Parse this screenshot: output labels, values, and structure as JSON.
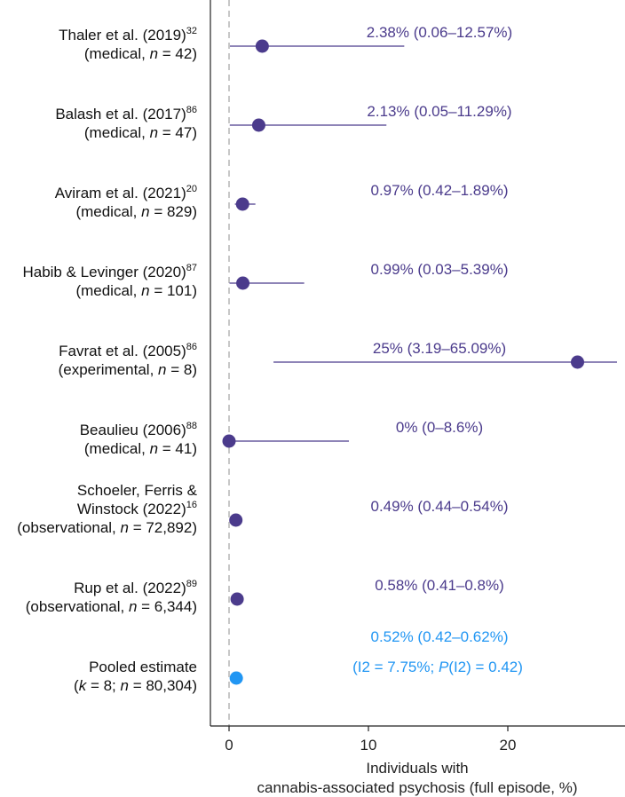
{
  "chart_data": {
    "type": "forest",
    "xlabel_line1": "Individuals with",
    "xlabel_line2": "cannabis-associated psychosis (full episode, %)",
    "xlim": [
      -1.5,
      28
    ],
    "xticks": [
      0,
      10,
      20
    ],
    "reference_line_x": 0,
    "colors": {
      "study": "#4b3b8c",
      "pooled": "#2196f3",
      "axis": "#222222",
      "reference": "#bbbbbb"
    },
    "studies": [
      {
        "name": "Thaler et al. (2019)",
        "ref": "32",
        "detail_pre": "(medical, ",
        "n_label": "n",
        "detail_post": " = 42)",
        "estimate": 2.38,
        "lower": 0.06,
        "upper": 12.57,
        "estimate_label": "2.38% (0.06–12.57%)"
      },
      {
        "name": "Balash et al. (2017)",
        "ref": "86",
        "detail_pre": "(medical, ",
        "n_label": "n",
        "detail_post": " = 47)",
        "estimate": 2.13,
        "lower": 0.05,
        "upper": 11.29,
        "estimate_label": "2.13% (0.05–11.29%)"
      },
      {
        "name": "Aviram et al. (2021)",
        "ref": "20",
        "detail_pre": "(medical, ",
        "n_label": "n",
        "detail_post": " = 829)",
        "estimate": 0.97,
        "lower": 0.42,
        "upper": 1.89,
        "estimate_label": "0.97% (0.42–1.89%)"
      },
      {
        "name": "Habib & Levinger (2020)",
        "ref": "87",
        "detail_pre": "(medical, ",
        "n_label": "n",
        "detail_post": " = 101)",
        "estimate": 0.99,
        "lower": 0.03,
        "upper": 5.39,
        "estimate_label": "0.99% (0.03–5.39%)"
      },
      {
        "name": "Favrat et al. (2005)",
        "ref": "86",
        "detail_pre": "(experimental, ",
        "n_label": "n",
        "detail_post": " = 8)",
        "estimate": 25,
        "lower": 3.19,
        "upper": 65.09,
        "estimate_label": "25% (3.19–65.09%)"
      },
      {
        "name": "Beaulieu (2006)",
        "ref": "88",
        "detail_pre": "(medical, ",
        "n_label": "n",
        "detail_post": " = 41)",
        "estimate": 0,
        "lower": 0,
        "upper": 8.6,
        "estimate_label": "0% (0–8.6%)"
      },
      {
        "name_line1": "Schoeler, Ferris &",
        "name": "Winstock (2022)",
        "ref": "16",
        "detail_pre": "(observational, ",
        "n_label": "n",
        "detail_post": " = 72,892)",
        "estimate": 0.49,
        "lower": 0.44,
        "upper": 0.54,
        "estimate_label": "0.49% (0.44–0.54%)"
      },
      {
        "name": "Rup et al. (2022)",
        "ref": "89",
        "detail_pre": "(observational, ",
        "n_label": "n",
        "detail_post": " = 6,344)",
        "estimate": 0.58,
        "lower": 0.41,
        "upper": 0.8,
        "estimate_label": "0.58% (0.41–0.8%)"
      }
    ],
    "pooled": {
      "name": "Pooled estimate",
      "detail_k": "k",
      "detail_mid": " = 8; ",
      "detail_n": "n",
      "detail_post": " = 80,304)",
      "estimate": 0.52,
      "lower": 0.42,
      "upper": 0.62,
      "estimate_label": "0.52% (0.42–0.62%)",
      "heterogeneity_pre": "(I2 = 7.75%; ",
      "heterogeneity_p": "P",
      "heterogeneity_post": "(I2) = 0.42)"
    }
  }
}
